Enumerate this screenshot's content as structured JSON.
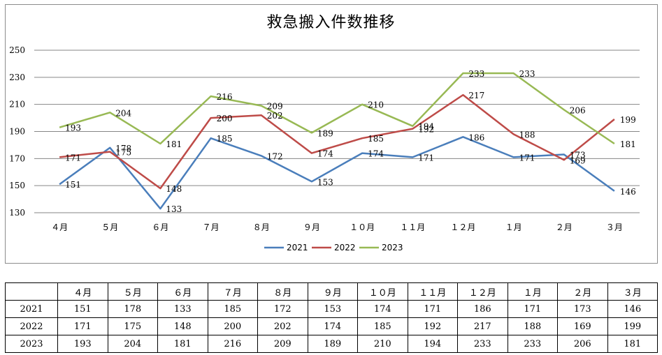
{
  "chart_data": {
    "type": "line",
    "title": "救急搬入件数推移",
    "xlabel": "",
    "ylabel": "",
    "categories": [
      "４月",
      "５月",
      "６月",
      "７月",
      "８月",
      "９月",
      "１０月",
      "１１月",
      "１２月",
      "１月",
      "２月",
      "３月"
    ],
    "ylim": [
      130,
      250
    ],
    "yticks": [
      130,
      150,
      170,
      190,
      210,
      230,
      250
    ],
    "grid": true,
    "legend": "bottom",
    "series": [
      {
        "name": "2021",
        "color": "#4a7ebb",
        "values": [
          151,
          178,
          133,
          185,
          172,
          153,
          174,
          171,
          186,
          171,
          173,
          146
        ]
      },
      {
        "name": "2022",
        "color": "#be4b48",
        "values": [
          171,
          175,
          148,
          200,
          202,
          174,
          185,
          192,
          217,
          188,
          169,
          199
        ]
      },
      {
        "name": "2023",
        "color": "#98b954",
        "values": [
          193,
          204,
          181,
          216,
          209,
          189,
          210,
          194,
          233,
          233,
          206,
          181
        ]
      }
    ]
  }
}
